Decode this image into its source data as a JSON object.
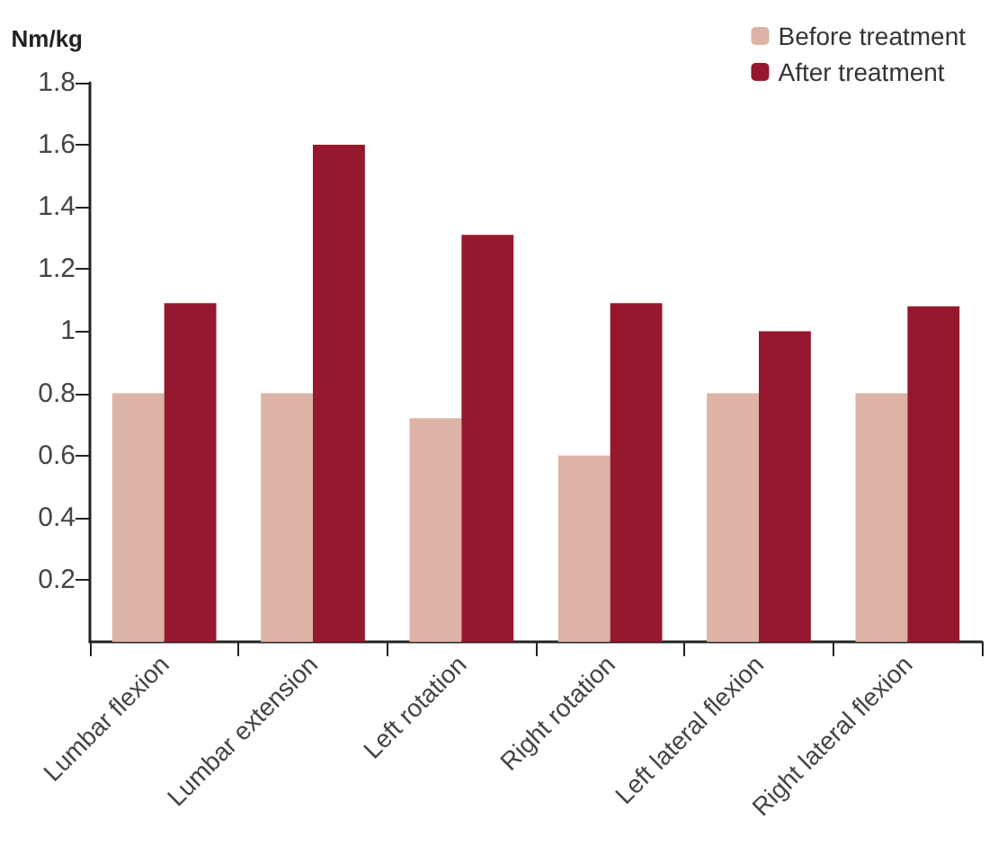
{
  "chart_data": {
    "type": "bar",
    "ylabel": "Nm/kg",
    "categories": [
      "Lumbar flexion",
      "Lumbar extension",
      "Left rotation",
      "Right rotation",
      "Left lateral flexion",
      "Right lateral flexion"
    ],
    "series": [
      {
        "name": "Before treatment",
        "color": "#dcb3a5",
        "values": [
          0.8,
          0.8,
          0.72,
          0.6,
          0.8,
          0.8
        ]
      },
      {
        "name": "After treatment",
        "color": "#96182e",
        "values": [
          1.09,
          1.6,
          1.31,
          1.09,
          1.0,
          1.08
        ]
      }
    ],
    "ylim": [
      0,
      1.8
    ],
    "yticks": [
      0.2,
      0.4,
      0.6,
      0.8,
      1,
      1.2,
      1.4,
      1.6,
      1.8
    ],
    "grid": false,
    "legend": "top right"
  }
}
